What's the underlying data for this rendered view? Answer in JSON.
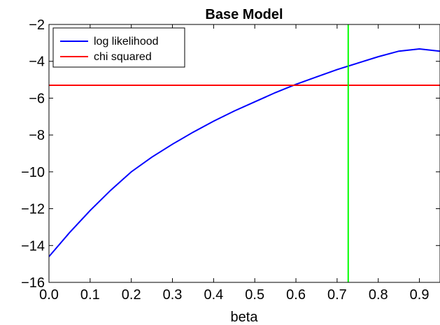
{
  "chart_data": {
    "type": "line",
    "title": "Base Model",
    "xlabel": "beta",
    "ylabel": "",
    "xlim": [
      0.0,
      0.95
    ],
    "ylim": [
      -16,
      -2
    ],
    "xticks": [
      0.0,
      0.1,
      0.2,
      0.3,
      0.4,
      0.5,
      0.6,
      0.7,
      0.8,
      0.9
    ],
    "xtick_labels": [
      "0.0",
      "0.1",
      "0.2",
      "0.3",
      "0.4",
      "0.5",
      "0.6",
      "0.7",
      "0.8",
      "0.9"
    ],
    "yticks": [
      -16,
      -14,
      -12,
      -10,
      -8,
      -6,
      -4,
      -2
    ],
    "ytick_labels": [
      "−16",
      "−14",
      "−12",
      "−10",
      "−8",
      "−6",
      "−4",
      "−2"
    ],
    "grid": false,
    "legend_position": "top-left",
    "series": [
      {
        "name": "log likelihood",
        "color": "#0000ff",
        "x": [
          0.0,
          0.05,
          0.1,
          0.15,
          0.2,
          0.25,
          0.3,
          0.35,
          0.4,
          0.45,
          0.5,
          0.55,
          0.6,
          0.65,
          0.7,
          0.75,
          0.8,
          0.85,
          0.9,
          0.95
        ],
        "y": [
          -14.6,
          -13.3,
          -12.1,
          -11.0,
          -10.0,
          -9.2,
          -8.5,
          -7.85,
          -7.25,
          -6.7,
          -6.2,
          -5.7,
          -5.25,
          -4.85,
          -4.45,
          -4.1,
          -3.75,
          -3.45,
          -3.33,
          -3.45
        ]
      },
      {
        "name": "chi squared",
        "color": "#ff0000",
        "x": [
          0.0,
          0.95
        ],
        "y": [
          -5.3,
          -5.3
        ]
      }
    ],
    "vertical_lines": [
      {
        "x": 0.727,
        "color": "#00ff00"
      }
    ]
  }
}
